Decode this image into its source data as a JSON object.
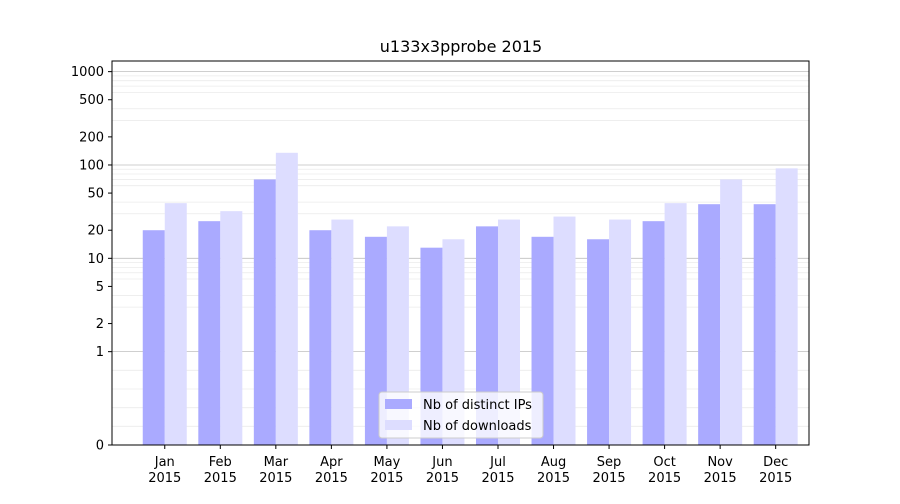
{
  "chart_data": {
    "type": "bar",
    "title": "u133x3pprobe 2015",
    "xlabel": "",
    "ylabel": "",
    "y_scale": "symlog",
    "ylim": [
      0,
      1300
    ],
    "yticks": [
      0,
      1,
      2,
      5,
      10,
      20,
      50,
      100,
      200,
      500,
      1000
    ],
    "ytick_labels": [
      "0",
      "1",
      "2",
      "5",
      "10",
      "20",
      "50",
      "100",
      "200",
      "500",
      "1000"
    ],
    "categories": [
      "Jan\n2015",
      "Feb\n2015",
      "Mar\n2015",
      "Apr\n2015",
      "May\n2015",
      "Jun\n2015",
      "Jul\n2015",
      "Aug\n2015",
      "Sep\n2015",
      "Oct\n2015",
      "Nov\n2015",
      "Dec\n2015"
    ],
    "category_lines": [
      [
        "Jan",
        "2015"
      ],
      [
        "Feb",
        "2015"
      ],
      [
        "Mar",
        "2015"
      ],
      [
        "Apr",
        "2015"
      ],
      [
        "May",
        "2015"
      ],
      [
        "Jun",
        "2015"
      ],
      [
        "Jul",
        "2015"
      ],
      [
        "Aug",
        "2015"
      ],
      [
        "Sep",
        "2015"
      ],
      [
        "Oct",
        "2015"
      ],
      [
        "Nov",
        "2015"
      ],
      [
        "Dec",
        "2015"
      ]
    ],
    "series": [
      {
        "name": "Nb of distinct IPs",
        "color": "#aaaaff",
        "values": [
          20,
          25,
          70,
          20,
          17,
          13,
          22,
          17,
          16,
          25,
          38,
          38
        ]
      },
      {
        "name": "Nb of downloads",
        "color": "#ddddff",
        "values": [
          39,
          32,
          135,
          26,
          22,
          16,
          26,
          28,
          26,
          39,
          70,
          92
        ]
      }
    ],
    "grid": true,
    "legend_position": "bottom-center"
  }
}
